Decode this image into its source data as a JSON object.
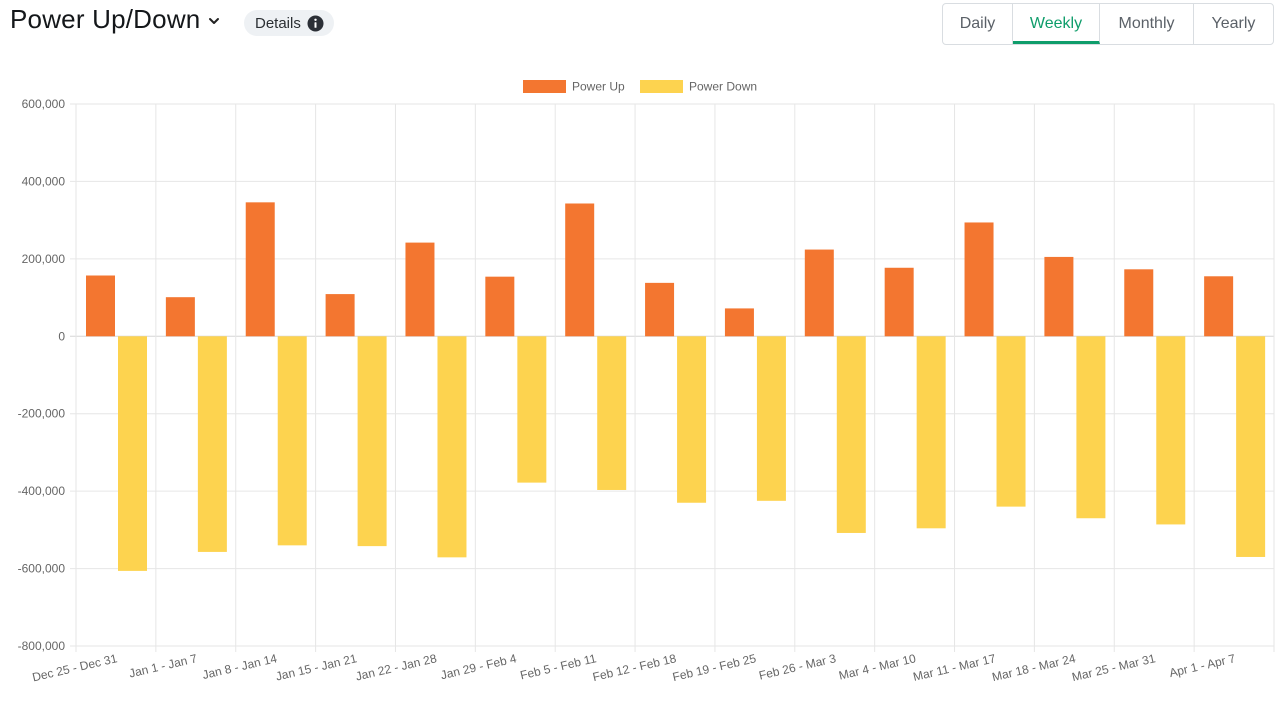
{
  "header": {
    "title": "Power Up/Down",
    "details_label": "Details",
    "icons": {
      "dropdown": "chevron-down-icon",
      "info": "info-icon"
    }
  },
  "period_tabs": [
    {
      "label": "Daily",
      "active": false
    },
    {
      "label": "Weekly",
      "active": true
    },
    {
      "label": "Monthly",
      "active": false
    },
    {
      "label": "Yearly",
      "active": false
    }
  ],
  "colors": {
    "accent": "#0f9d6b",
    "power_up": "#f37630",
    "power_down": "#fdd34f"
  },
  "chart_data": {
    "type": "bar",
    "title": "",
    "xlabel": "",
    "ylabel": "",
    "ylim": [
      -800000,
      600000
    ],
    "y_ticks": [
      600000,
      400000,
      200000,
      0,
      -200000,
      -400000,
      -600000,
      -800000
    ],
    "y_tick_labels": [
      "600,000",
      "400,000",
      "200,000",
      "0",
      "-200,000",
      "-400,000",
      "-600,000",
      "-800,000"
    ],
    "grid": true,
    "legend_position": "top-center",
    "categories": [
      "Dec 25 - Dec 31",
      "Jan 1 - Jan 7",
      "Jan 8 - Jan 14",
      "Jan 15 - Jan 21",
      "Jan 22 - Jan 28",
      "Jan 29 - Feb 4",
      "Feb 5 - Feb 11",
      "Feb 12 - Feb 18",
      "Feb 19 - Feb 25",
      "Feb 26 - Mar 3",
      "Mar 4 - Mar 10",
      "Mar 11 - Mar 17",
      "Mar 18 - Mar 24",
      "Mar 25 - Mar 31",
      "Apr 1 - Apr 7"
    ],
    "series": [
      {
        "name": "Power Up",
        "color": "#f37630",
        "values": [
          157000,
          101000,
          346000,
          109000,
          242000,
          154000,
          343000,
          138000,
          72000,
          224000,
          177000,
          294000,
          205000,
          173000,
          155000
        ]
      },
      {
        "name": "Power Down",
        "color": "#fdd34f",
        "values": [
          -606000,
          -557000,
          -540000,
          -542000,
          -571000,
          -378000,
          -397000,
          -430000,
          -425000,
          -508000,
          -496000,
          -440000,
          -470000,
          -486000,
          -570000
        ]
      }
    ]
  }
}
